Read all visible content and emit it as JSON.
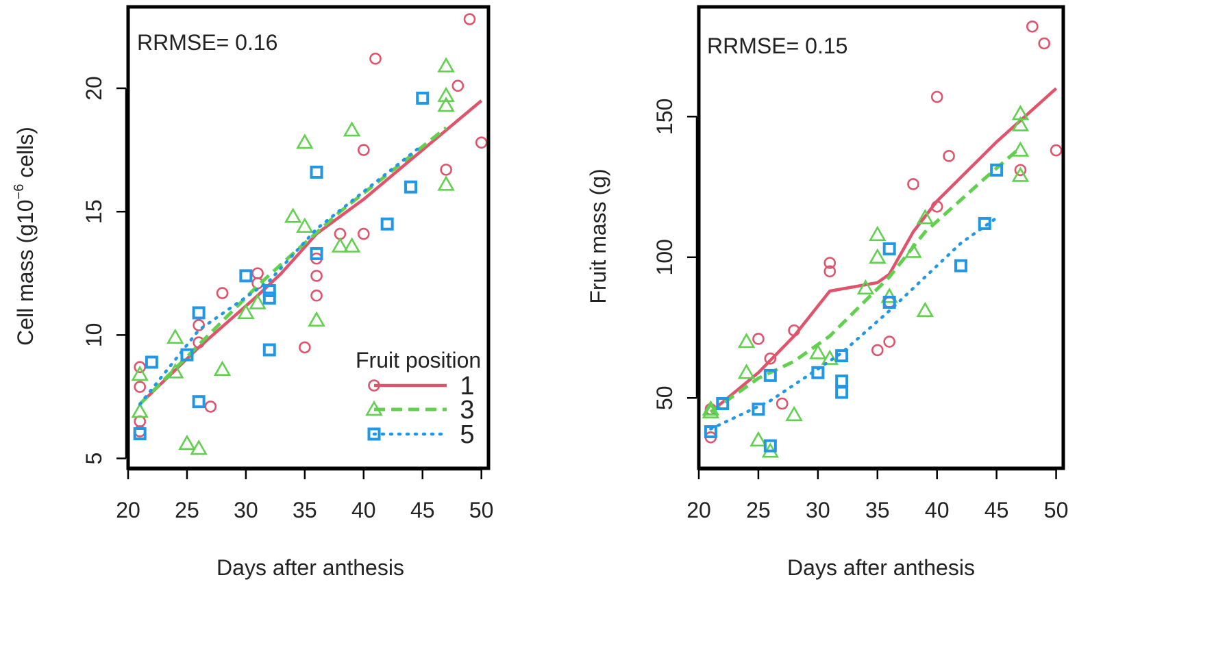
{
  "colors": {
    "s1": "#DF536B",
    "s3": "#61D04F",
    "s5": "#2297E6",
    "frame": "#000000",
    "text": "#222222"
  },
  "series_meta": [
    {
      "name": "1",
      "marker": "circle",
      "line": "solid",
      "color": "#DF536B"
    },
    {
      "name": "3",
      "marker": "triangle",
      "line": "dashed",
      "color": "#61D04F"
    },
    {
      "name": "5",
      "marker": "square",
      "line": "dotted",
      "color": "#2297E6"
    }
  ],
  "legend": {
    "title": "Fruit position",
    "placement": "bottom-right",
    "labels": [
      "1",
      "3",
      "5"
    ]
  },
  "chart_data": [
    {
      "type": "scatter",
      "title": "",
      "annotation": "RRMSE= 0.16",
      "xlabel": "Days after anthesis",
      "ylabel": "Cell mass  (g10",
      "ylabel_sup": "−6",
      "ylabel_tail": "  cells)",
      "xlim": [
        20,
        50.6
      ],
      "ylim": [
        4.6,
        23.3
      ],
      "xticks": [
        20,
        25,
        30,
        35,
        40,
        45,
        50
      ],
      "yticks": [
        5,
        10,
        15,
        20
      ],
      "legend_placement": "bottom-right",
      "series": [
        {
          "name": "1",
          "points": [
            [
              21,
              8.7
            ],
            [
              21,
              7.9
            ],
            [
              21,
              6.5
            ],
            [
              21,
              6.1
            ],
            [
              26,
              10.4
            ],
            [
              26,
              9.7
            ],
            [
              27,
              7.1
            ],
            [
              28,
              11.7
            ],
            [
              31,
              12.5
            ],
            [
              31,
              12.1
            ],
            [
              35,
              9.5
            ],
            [
              36,
              13.1
            ],
            [
              36,
              12.4
            ],
            [
              36,
              11.6
            ],
            [
              38,
              14.1
            ],
            [
              40,
              14.1
            ],
            [
              40,
              17.5
            ],
            [
              41,
              21.2
            ],
            [
              47,
              16.7
            ],
            [
              48,
              20.1
            ],
            [
              49,
              22.8
            ],
            [
              50,
              17.8
            ]
          ],
          "line": [
            [
              21,
              7.2
            ],
            [
              26,
              9.5
            ],
            [
              31,
              11.6
            ],
            [
              33,
              12.5
            ],
            [
              36,
              14.1
            ],
            [
              40,
              15.5
            ],
            [
              45,
              17.5
            ],
            [
              50,
              19.5
            ]
          ]
        },
        {
          "name": "3",
          "points": [
            [
              21,
              8.4
            ],
            [
              21,
              6.9
            ],
            [
              24,
              9.9
            ],
            [
              24,
              8.5
            ],
            [
              25,
              5.6
            ],
            [
              26,
              5.4
            ],
            [
              28,
              8.6
            ],
            [
              30,
              10.9
            ],
            [
              31,
              11.3
            ],
            [
              34,
              14.8
            ],
            [
              35,
              14.4
            ],
            [
              35,
              17.8
            ],
            [
              36,
              10.6
            ],
            [
              38,
              13.6
            ],
            [
              39,
              13.6
            ],
            [
              39,
              18.3
            ],
            [
              47,
              20.9
            ],
            [
              47,
              19.7
            ],
            [
              47,
              19.3
            ],
            [
              47,
              16.1
            ]
          ],
          "line": [
            [
              21,
              7.2
            ],
            [
              26,
              9.6
            ],
            [
              31,
              12.0
            ],
            [
              34,
              13.3
            ],
            [
              38,
              15.0
            ],
            [
              42,
              16.5
            ],
            [
              47,
              18.4
            ]
          ]
        },
        {
          "name": "5",
          "points": [
            [
              21,
              6.0
            ],
            [
              22,
              8.9
            ],
            [
              25,
              9.2
            ],
            [
              26,
              10.9
            ],
            [
              26,
              7.3
            ],
            [
              30,
              12.4
            ],
            [
              32,
              11.8
            ],
            [
              32,
              11.5
            ],
            [
              32,
              9.4
            ],
            [
              36,
              16.6
            ],
            [
              36,
              13.3
            ],
            [
              42,
              14.5
            ],
            [
              44,
              16.0
            ],
            [
              45,
              19.6
            ]
          ],
          "line": [
            [
              21,
              7.2
            ],
            [
              26,
              10.2
            ],
            [
              32,
              12.2
            ],
            [
              36,
              14.3
            ],
            [
              45,
              17.7
            ]
          ]
        }
      ]
    },
    {
      "type": "scatter",
      "title": "",
      "annotation": "RRMSE= 0.15",
      "xlabel": "Days after anthesis",
      "ylabel": "Fruit mass (g)",
      "xlim": [
        20,
        50.6
      ],
      "ylim": [
        25,
        189
      ],
      "xticks": [
        20,
        25,
        30,
        35,
        40,
        45,
        50
      ],
      "yticks": [
        50,
        100,
        150
      ],
      "series": [
        {
          "name": "1",
          "points": [
            [
              21,
              46
            ],
            [
              21,
              36
            ],
            [
              25,
              71
            ],
            [
              26,
              64
            ],
            [
              27,
              48
            ],
            [
              28,
              74
            ],
            [
              31,
              98
            ],
            [
              31,
              95
            ],
            [
              35,
              67
            ],
            [
              36,
              70
            ],
            [
              36,
              84
            ],
            [
              38,
              126
            ],
            [
              40,
              118
            ],
            [
              40,
              157
            ],
            [
              41,
              136
            ],
            [
              47,
              131
            ],
            [
              48,
              182
            ],
            [
              49,
              176
            ],
            [
              50,
              138
            ]
          ],
          "line": [
            [
              21,
              45
            ],
            [
              25,
              59
            ],
            [
              28,
              72
            ],
            [
              31,
              88
            ],
            [
              35,
              91
            ],
            [
              36,
              94
            ],
            [
              38,
              109
            ],
            [
              40,
              120
            ],
            [
              45,
              141
            ],
            [
              50,
              160
            ]
          ]
        },
        {
          "name": "3",
          "points": [
            [
              21,
              46
            ],
            [
              21,
              45
            ],
            [
              24,
              70
            ],
            [
              24,
              59
            ],
            [
              25,
              35
            ],
            [
              26,
              31
            ],
            [
              28,
              44
            ],
            [
              30,
              66
            ],
            [
              31,
              64
            ],
            [
              34,
              89
            ],
            [
              35,
              108
            ],
            [
              35,
              100
            ],
            [
              36,
              86
            ],
            [
              38,
              102
            ],
            [
              39,
              81
            ],
            [
              39,
              114
            ],
            [
              47,
              151
            ],
            [
              47,
              147
            ],
            [
              47,
              138
            ],
            [
              47,
              129
            ]
          ],
          "line": [
            [
              21,
              45
            ],
            [
              25,
              57
            ],
            [
              28,
              63
            ],
            [
              31,
              72
            ],
            [
              36,
              93
            ],
            [
              39,
              109
            ],
            [
              44,
              128
            ],
            [
              47,
              139
            ]
          ]
        },
        {
          "name": "5",
          "points": [
            [
              21,
              38
            ],
            [
              22,
              48
            ],
            [
              25,
              46
            ],
            [
              26,
              58
            ],
            [
              26,
              33
            ],
            [
              30,
              59
            ],
            [
              32,
              65
            ],
            [
              32,
              56
            ],
            [
              32,
              52
            ],
            [
              36,
              103
            ],
            [
              36,
              84
            ],
            [
              42,
              97
            ],
            [
              44,
              112
            ],
            [
              45,
              131
            ]
          ],
          "line": [
            [
              21,
              39
            ],
            [
              26,
              49
            ],
            [
              32,
              66
            ],
            [
              36,
              81
            ],
            [
              42,
              105
            ],
            [
              45,
              114
            ]
          ]
        }
      ]
    }
  ]
}
